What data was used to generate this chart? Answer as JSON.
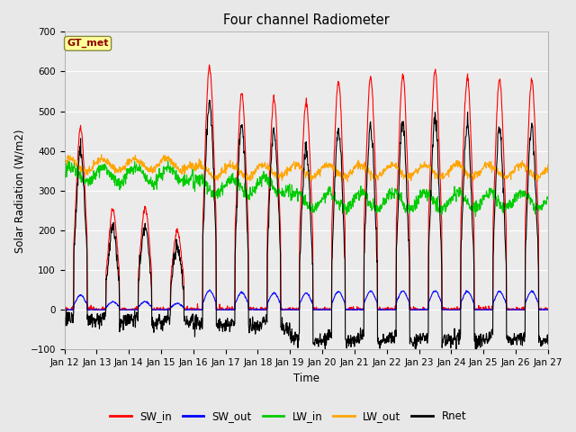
{
  "title": "Four channel Radiometer",
  "xlabel": "Time",
  "ylabel": "Solar Radiation (W/m2)",
  "legend_label": "GT_met",
  "legend_text_color": "#8B0000",
  "legend_box_color": "#FFFF99",
  "series_labels": [
    "SW_in",
    "SW_out",
    "LW_in",
    "LW_out",
    "Rnet"
  ],
  "series_colors": [
    "#FF0000",
    "#0000FF",
    "#00CC00",
    "#FFA500",
    "#000000"
  ],
  "ylim": [
    -100,
    700
  ],
  "num_days": 15,
  "tick_labels": [
    "Jan 12",
    "Jan 13",
    "Jan 14",
    "Jan 15",
    "Jan 16",
    "Jan 17",
    "Jan 18",
    "Jan 19",
    "Jan 20",
    "Jan 21",
    "Jan 22",
    "Jan 23",
    "Jan 24",
    "Jan 25",
    "Jan 26",
    "Jan 27"
  ],
  "background_color": "#E8E8E8",
  "plot_bg_color": "#EBEBEB"
}
